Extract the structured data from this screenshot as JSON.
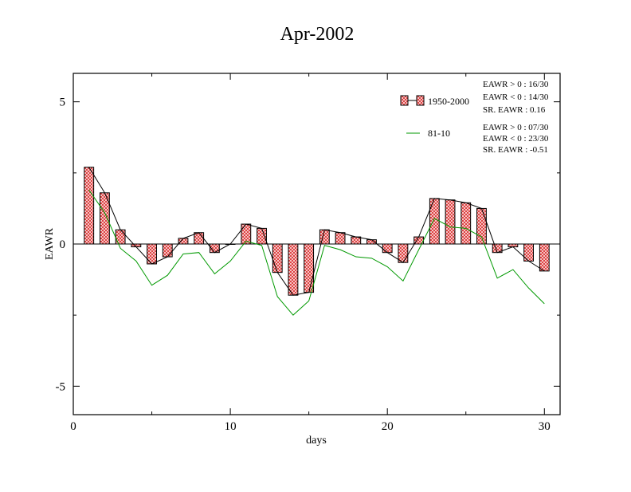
{
  "chart_data": {
    "type": "bar",
    "title": "Apr-2002",
    "xlabel": "days",
    "ylabel": "EAWR",
    "xlim": [
      0,
      31
    ],
    "ylim": [
      -6,
      6
    ],
    "x_ticks": [
      0,
      10,
      20,
      30
    ],
    "y_ticks": [
      -5,
      0,
      5
    ],
    "y_tick_labels": [
      "-5",
      "0",
      "5"
    ],
    "grid": false,
    "legend_position": "top-right",
    "x": [
      1,
      2,
      3,
      4,
      5,
      6,
      7,
      8,
      9,
      10,
      11,
      12,
      13,
      14,
      15,
      16,
      17,
      18,
      19,
      20,
      21,
      22,
      23,
      24,
      25,
      26,
      27,
      28,
      29,
      30
    ],
    "series": [
      {
        "name": "1950-2000",
        "style": "bar",
        "color": "#e87070",
        "values": [
          2.7,
          1.8,
          0.5,
          -0.1,
          -0.7,
          -0.45,
          0.2,
          0.4,
          -0.3,
          0.0,
          0.7,
          0.55,
          -1.0,
          -1.8,
          -1.7,
          0.5,
          0.4,
          0.25,
          0.15,
          -0.3,
          -0.65,
          0.25,
          1.6,
          1.55,
          1.45,
          1.25,
          -0.3,
          -0.1,
          -0.6,
          -0.95
        ]
      },
      {
        "name": "81-10",
        "style": "line",
        "color": "#009900",
        "values": [
          1.9,
          1.1,
          -0.15,
          -0.6,
          -1.45,
          -1.1,
          -0.35,
          -0.3,
          -1.05,
          -0.6,
          0.1,
          -0.05,
          -1.85,
          -2.5,
          -2.0,
          -0.05,
          -0.2,
          -0.45,
          -0.5,
          -0.8,
          -1.3,
          -0.2,
          0.9,
          0.6,
          0.55,
          0.25,
          -1.2,
          -0.9,
          -1.55,
          -2.1
        ]
      }
    ],
    "stats": [
      [
        "EAWR > 0 : 16/30",
        "EAWR < 0 : 14/30",
        "SR. EAWR :  0.16"
      ],
      [
        "EAWR > 0 : 07/30",
        "EAWR < 0 : 23/30",
        "SR. EAWR : -0.51"
      ]
    ]
  }
}
